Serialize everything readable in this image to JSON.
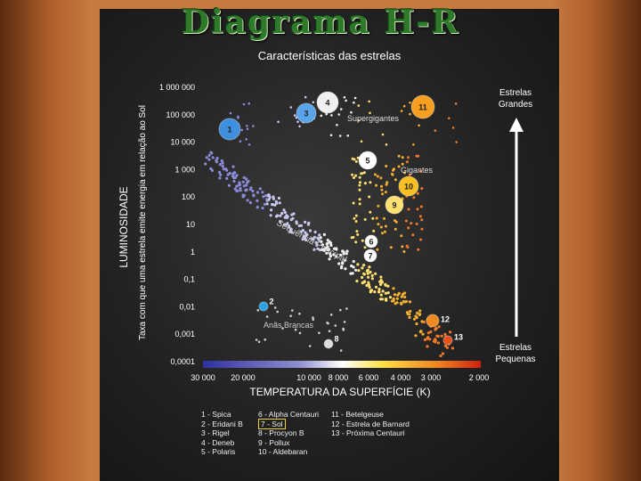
{
  "title": "Diagrama H-R",
  "subtitle": "Características das estrelas",
  "ylabel_outer": "LUMINOSIDADE",
  "ylabel_inner": "Taxa com que uma estrela emite energia em relação ao Sol",
  "xlabel": "TEMPERATURA DA SUPERFÍCIE (K)",
  "y_ticks": [
    "1 000 000",
    "100 000",
    "10 000",
    "1 000",
    "100",
    "10",
    "1",
    "0,1",
    "0,01",
    "0,001",
    "0,0001"
  ],
  "x_ticks": [
    "30 000",
    "20 000",
    "10 000",
    "8 000",
    "6 000",
    "4 000",
    "3 000",
    "2 000"
  ],
  "region_labels": {
    "supergiants": "Supergigantes",
    "giants": "Gigantes",
    "main_sequence": "Sequência Principal",
    "white_dwarfs": "Anãs Brancas"
  },
  "arrow_labels": {
    "top": [
      "Estrelas",
      "Grandes"
    ],
    "bottom": [
      "Estrelas",
      "Pequenas"
    ]
  },
  "stars": [
    {
      "num": "1",
      "color": "#3f8fe0",
      "r": 12
    },
    {
      "num": "2",
      "color": "#2aa0e8",
      "r": 5
    },
    {
      "num": "3",
      "color": "#5aa4ea",
      "r": 11
    },
    {
      "num": "4",
      "color": "#f0f0f0",
      "r": 12
    },
    {
      "num": "5",
      "color": "#ffffff",
      "r": 10
    },
    {
      "num": "6",
      "color": "#ffffff",
      "r": 7
    },
    {
      "num": "7",
      "color": "#ffffff",
      "r": 7
    },
    {
      "num": "8",
      "color": "#dddddd",
      "r": 5
    },
    {
      "num": "9",
      "color": "#ffe070",
      "r": 10
    },
    {
      "num": "10",
      "color": "#f7c020",
      "r": 11
    },
    {
      "num": "11",
      "color": "#f7a020",
      "r": 13
    },
    {
      "num": "12",
      "color": "#f08a20",
      "r": 7
    },
    {
      "num": "13",
      "color": "#e8501a",
      "r": 5
    }
  ],
  "legend": {
    "col1": [
      "1 - Spica",
      "2 - Eridani B",
      "3 - Rigel",
      "4 - Deneb",
      "5 - Polaris"
    ],
    "col2": [
      "6 - Alpha Centauri",
      "7 - Sol",
      "8 - Procyon B",
      "9 - Pollux",
      "10 - Aldebaran"
    ],
    "col3": [
      "11 - Betelgeuse",
      "12 - Estrela de Barnard",
      "13 - Próxima Centauri"
    ]
  },
  "colors": {
    "title": "#2f7a2a",
    "sol_highlight": "#f2d23a"
  }
}
